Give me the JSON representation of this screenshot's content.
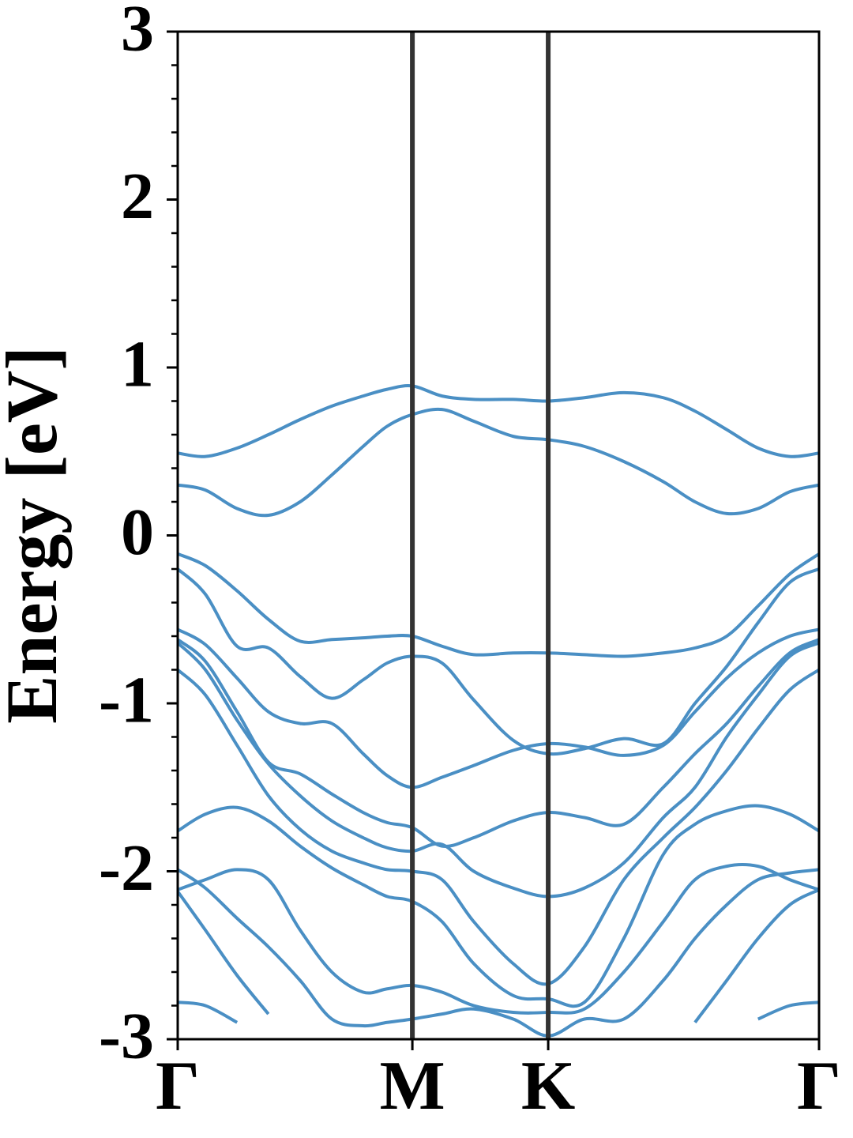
{
  "chart_data": {
    "type": "line",
    "ylabel": "Energy [eV]",
    "x": [
      0,
      0.068,
      0.146,
      0.223,
      0.301,
      0.379,
      0.456,
      0.515,
      0.577,
      0.65,
      0.728,
      0.825,
      0.911,
      1.0,
      1.097,
      1.194,
      1.272,
      1.35,
      1.427,
      1.505,
      1.577
    ],
    "xlim": [
      0,
      1.577
    ],
    "xticks": [
      {
        "value": 0,
        "label": "Γ"
      },
      {
        "value": 0.577,
        "label": "M"
      },
      {
        "value": 0.911,
        "label": "K"
      },
      {
        "value": 1.577,
        "label": "Γ"
      }
    ],
    "ylim": [
      -3,
      3
    ],
    "yticks": [
      -3,
      -2,
      -1,
      0,
      1,
      2,
      3
    ],
    "yminorticks": [
      -2.8,
      -2.6,
      -2.4,
      -2.2,
      -1.8,
      -1.6,
      -1.4,
      -1.2,
      -0.8,
      -0.6,
      -0.4,
      -0.2,
      0.2,
      0.4,
      0.6,
      0.8,
      1.2,
      1.4,
      1.6,
      1.8,
      2.2,
      2.4,
      2.6,
      2.8
    ],
    "symmetry_lines": true,
    "color": "#4a8fc4",
    "series": [
      {
        "values": [
          0.49,
          0.47,
          0.52,
          0.6,
          0.69,
          0.77,
          0.83,
          0.87,
          0.89,
          0.83,
          0.81,
          0.81,
          0.8,
          0.82,
          0.85,
          0.82,
          0.74,
          0.63,
          0.52,
          0.47,
          0.49
        ]
      },
      {
        "values": [
          0.3,
          0.27,
          0.16,
          0.12,
          0.2,
          0.36,
          0.53,
          0.65,
          0.72,
          0.75,
          0.68,
          0.59,
          0.57,
          0.53,
          0.44,
          0.32,
          0.2,
          0.13,
          0.16,
          0.26,
          0.3
        ]
      },
      {
        "values": [
          -0.11,
          -0.18,
          -0.33,
          -0.5,
          -0.63,
          -0.62,
          -0.61,
          -0.6,
          -0.6,
          -0.66,
          -0.71,
          -0.7,
          -0.7,
          -0.71,
          -0.72,
          -0.7,
          -0.67,
          -0.6,
          -0.42,
          -0.23,
          -0.11
        ]
      },
      {
        "values": [
          -0.2,
          -0.35,
          -0.66,
          -0.67,
          -0.84,
          -0.97,
          -0.86,
          -0.76,
          -0.72,
          -0.76,
          -0.98,
          -1.22,
          -1.3,
          -1.27,
          -1.21,
          -1.24,
          -1.0,
          -0.78,
          -0.52,
          -0.28,
          -0.2
        ]
      },
      {
        "values": [
          -0.56,
          -0.65,
          -0.85,
          -1.05,
          -1.12,
          -1.12,
          -1.3,
          -1.43,
          -1.5,
          -1.44,
          -1.37,
          -1.28,
          -1.24,
          -1.26,
          -1.31,
          -1.25,
          -1.05,
          -0.85,
          -0.7,
          -0.6,
          -0.56
        ]
      },
      {
        "values": [
          -0.62,
          -0.75,
          -1.05,
          -1.35,
          -1.42,
          -1.54,
          -1.65,
          -1.71,
          -1.74,
          -1.85,
          -1.8,
          -1.7,
          -1.65,
          -1.68,
          -1.72,
          -1.5,
          -1.3,
          -1.12,
          -0.9,
          -0.7,
          -0.62
        ]
      },
      {
        "values": [
          -0.64,
          -0.8,
          -1.1,
          -1.36,
          -1.55,
          -1.7,
          -1.8,
          -1.86,
          -1.88,
          -1.84,
          -2.0,
          -2.1,
          -2.15,
          -2.1,
          -1.95,
          -1.68,
          -1.5,
          -1.2,
          -0.95,
          -0.72,
          -0.64
        ]
      },
      {
        "values": [
          -0.8,
          -0.95,
          -1.25,
          -1.55,
          -1.75,
          -1.88,
          -1.95,
          -1.99,
          -2.0,
          -2.05,
          -2.3,
          -2.55,
          -2.67,
          -2.45,
          -2.05,
          -1.8,
          -1.62,
          -1.4,
          -1.15,
          -0.92,
          -0.8
        ]
      },
      {
        "values": [
          -1.76,
          -1.66,
          -1.62,
          -1.7,
          -1.85,
          -1.98,
          -2.08,
          -2.15,
          -2.18,
          -2.3,
          -2.55,
          -2.74,
          -2.76,
          -2.78,
          -2.4,
          -1.9,
          -1.72,
          -1.64,
          -1.61,
          -1.66,
          -1.76
        ]
      },
      {
        "values": [
          -2.11,
          -2.05,
          -1.99,
          -2.05,
          -2.35,
          -2.6,
          -2.72,
          -2.7,
          -2.68,
          -2.72,
          -2.8,
          -2.84,
          -2.84,
          -2.82,
          -2.6,
          -2.3,
          -2.05,
          -1.97,
          -1.97,
          -2.05,
          -2.11
        ]
      },
      {
        "values": [
          -1.99,
          -2.1,
          -2.28,
          -2.45,
          -2.65,
          -2.88,
          -2.92,
          -2.9,
          -2.88,
          -2.85,
          -2.82,
          -2.88,
          -2.98,
          -2.88,
          -2.88,
          -2.65,
          -2.4,
          -2.2,
          -2.05,
          -2.01,
          -1.99
        ]
      },
      {
        "values": [
          -2.12,
          -2.35,
          -2.62,
          -2.85,
          null,
          null,
          null,
          null,
          null,
          null,
          null,
          null,
          null,
          null,
          null,
          null,
          -2.9,
          -2.65,
          -2.4,
          -2.2,
          -2.11
        ]
      },
      {
        "values": [
          -2.78,
          -2.8,
          -2.9,
          null,
          null,
          null,
          null,
          null,
          null,
          null,
          null,
          null,
          null,
          null,
          null,
          null,
          null,
          null,
          -2.88,
          -2.8,
          -2.78
        ]
      }
    ]
  }
}
